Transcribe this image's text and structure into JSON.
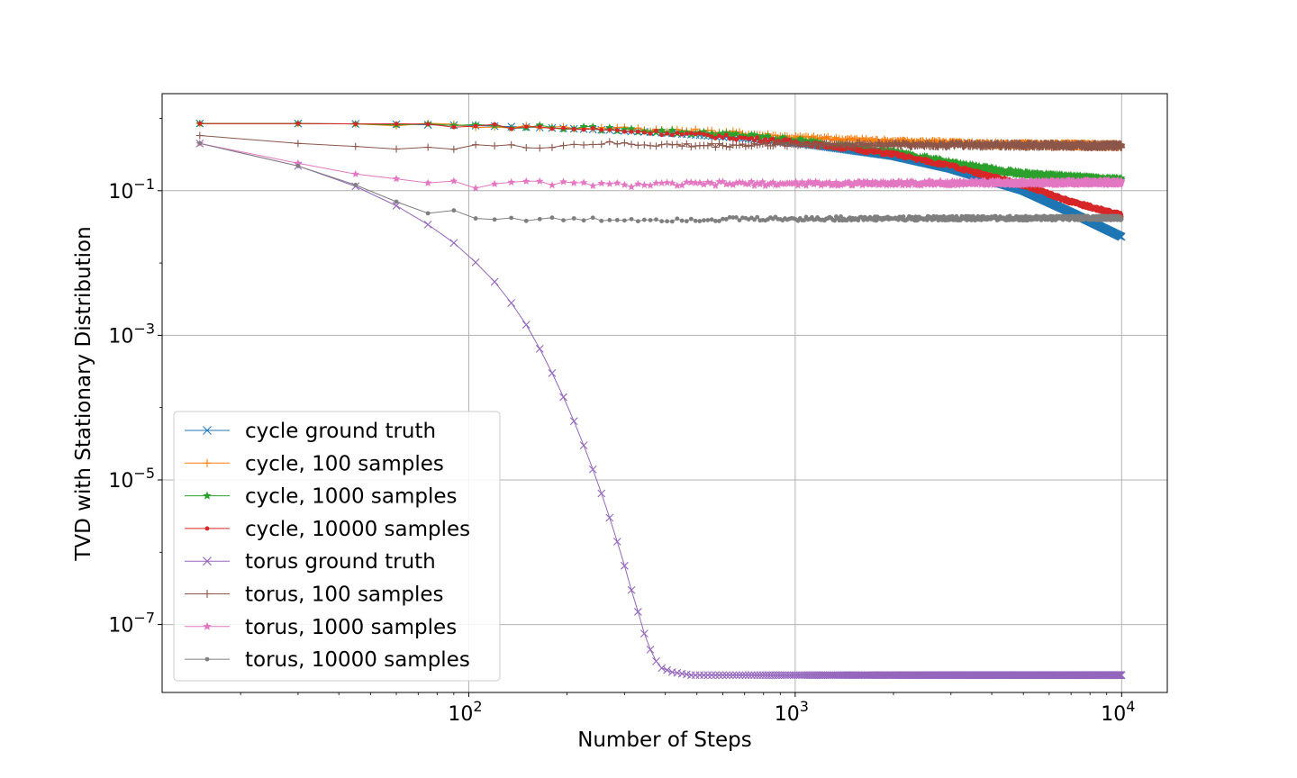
{
  "chart_data": {
    "type": "line",
    "title": "",
    "xlabel": "Number of Steps",
    "ylabel": "TVD with Stationary Distribution",
    "xscale": "log",
    "yscale": "log",
    "xlim": [
      11.5,
      13800
    ],
    "ylim": [
      1.15e-08,
      2.2
    ],
    "grid": true,
    "legend_position": "lower-left",
    "x_ticks": [
      {
        "value": 100,
        "base": "10",
        "exp": "2"
      },
      {
        "value": 1000,
        "base": "10",
        "exp": "3"
      },
      {
        "value": 10000,
        "base": "10",
        "exp": "4"
      }
    ],
    "y_ticks": [
      {
        "value": 0.1,
        "base": "10",
        "exp": "−1"
      },
      {
        "value": 0.001,
        "base": "10",
        "exp": "−3"
      },
      {
        "value": 1e-05,
        "base": "10",
        "exp": "−5"
      },
      {
        "value": 1e-07,
        "base": "10",
        "exp": "−7"
      }
    ],
    "series": [
      {
        "name": "cycle ground truth",
        "color": "#1f77b4",
        "marker": "x",
        "points": [
          [
            15,
            0.85
          ],
          [
            30,
            0.85
          ],
          [
            60,
            0.83
          ],
          [
            100,
            0.8
          ],
          [
            150,
            0.76
          ],
          [
            250,
            0.7
          ],
          [
            400,
            0.63
          ],
          [
            600,
            0.56
          ],
          [
            1000,
            0.46
          ],
          [
            2000,
            0.3
          ],
          [
            3000,
            0.2
          ],
          [
            5000,
            0.1
          ],
          [
            7000,
            0.05
          ],
          [
            10000,
            0.023
          ]
        ]
      },
      {
        "name": "cycle, 100 samples",
        "color": "#ff7f0e",
        "marker": "+",
        "points": [
          [
            15,
            0.85
          ],
          [
            30,
            0.85
          ],
          [
            60,
            0.83
          ],
          [
            100,
            0.8
          ],
          [
            150,
            0.77
          ],
          [
            250,
            0.74
          ],
          [
            400,
            0.7
          ],
          [
            700,
            0.62
          ],
          [
            1000,
            0.55
          ],
          [
            2000,
            0.48
          ],
          [
            4000,
            0.44
          ],
          [
            10000,
            0.42
          ]
        ]
      },
      {
        "name": "cycle, 1000 samples",
        "color": "#2ca02c",
        "marker": "*",
        "points": [
          [
            15,
            0.85
          ],
          [
            30,
            0.85
          ],
          [
            60,
            0.83
          ],
          [
            100,
            0.8
          ],
          [
            150,
            0.77
          ],
          [
            250,
            0.72
          ],
          [
            400,
            0.66
          ],
          [
            700,
            0.58
          ],
          [
            1000,
            0.5
          ],
          [
            2000,
            0.34
          ],
          [
            3000,
            0.24
          ],
          [
            5000,
            0.17
          ],
          [
            10000,
            0.14
          ]
        ]
      },
      {
        "name": "cycle, 10000 samples",
        "color": "#d62728",
        "marker": ".",
        "points": [
          [
            15,
            0.85
          ],
          [
            30,
            0.85
          ],
          [
            60,
            0.83
          ],
          [
            100,
            0.8
          ],
          [
            150,
            0.76
          ],
          [
            250,
            0.7
          ],
          [
            400,
            0.63
          ],
          [
            600,
            0.56
          ],
          [
            1000,
            0.47
          ],
          [
            2000,
            0.32
          ],
          [
            3000,
            0.22
          ],
          [
            5000,
            0.12
          ],
          [
            7000,
            0.07
          ],
          [
            10000,
            0.046
          ]
        ]
      },
      {
        "name": "torus ground truth",
        "color": "#9467bd",
        "marker": "x",
        "points": [
          [
            15,
            0.45
          ],
          [
            30,
            0.22
          ],
          [
            45,
            0.115
          ],
          [
            60,
            0.062
          ],
          [
            75,
            0.034
          ],
          [
            90,
            0.019
          ],
          [
            105,
            0.0102
          ],
          [
            120,
            0.0055
          ],
          [
            135,
            0.0028
          ],
          [
            150,
            0.0014
          ],
          [
            165,
            0.00065
          ],
          [
            180,
            0.0003
          ],
          [
            195,
            0.00014
          ],
          [
            210,
            6.5e-05
          ],
          [
            225,
            3e-05
          ],
          [
            240,
            1.4e-05
          ],
          [
            255,
            6.5e-06
          ],
          [
            270,
            3e-06
          ],
          [
            285,
            1.4e-06
          ],
          [
            300,
            6.5e-07
          ],
          [
            315,
            3e-07
          ],
          [
            330,
            1.5e-07
          ],
          [
            345,
            7.5e-08
          ],
          [
            360,
            4.5e-08
          ],
          [
            375,
            3.1e-08
          ],
          [
            390,
            2.5e-08
          ],
          [
            420,
            2.2e-08
          ],
          [
            480,
            2e-08
          ],
          [
            1000,
            2e-08
          ],
          [
            10000,
            2e-08
          ]
        ]
      },
      {
        "name": "torus, 100 samples",
        "color": "#8c564b",
        "marker": "+",
        "points": [
          [
            15,
            0.58
          ],
          [
            30,
            0.45
          ],
          [
            45,
            0.41
          ],
          [
            60,
            0.4
          ],
          [
            75,
            0.4
          ],
          [
            90,
            0.38
          ],
          [
            105,
            0.42
          ],
          [
            150,
            0.4
          ],
          [
            250,
            0.45
          ],
          [
            500,
            0.42
          ],
          [
            1000,
            0.44
          ],
          [
            10000,
            0.42
          ]
        ]
      },
      {
        "name": "torus, 1000 samples",
        "color": "#e377c2",
        "marker": "*",
        "points": [
          [
            15,
            0.45
          ],
          [
            30,
            0.24
          ],
          [
            45,
            0.17
          ],
          [
            60,
            0.15
          ],
          [
            75,
            0.13
          ],
          [
            90,
            0.145
          ],
          [
            105,
            0.11
          ],
          [
            150,
            0.13
          ],
          [
            300,
            0.12
          ],
          [
            600,
            0.125
          ],
          [
            1000,
            0.125
          ],
          [
            10000,
            0.13
          ]
        ]
      },
      {
        "name": "torus, 10000 samples",
        "color": "#7f7f7f",
        "marker": ".",
        "points": [
          [
            15,
            0.45
          ],
          [
            30,
            0.22
          ],
          [
            45,
            0.12
          ],
          [
            60,
            0.07
          ],
          [
            75,
            0.05
          ],
          [
            90,
            0.052
          ],
          [
            105,
            0.044
          ],
          [
            130,
            0.04
          ],
          [
            200,
            0.04
          ],
          [
            400,
            0.04
          ],
          [
            1000,
            0.041
          ],
          [
            10000,
            0.042
          ]
        ]
      }
    ]
  }
}
